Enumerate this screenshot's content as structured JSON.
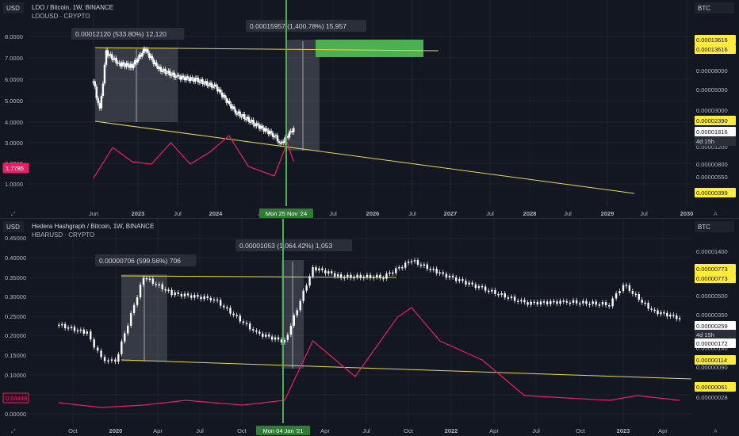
{
  "colors": {
    "background": "#131722",
    "grid": "#1e222d",
    "price": "#ffffff",
    "indicator": "#e91e63",
    "trendline": "#e6d84a",
    "highlight_line": "#4caf50",
    "target_box": "#4caf50",
    "range_box": "#787b86",
    "label_yellow": "#ffeb3b",
    "label_pink": "#e91e63"
  },
  "chart_data": [
    {
      "type": "line",
      "title": "LDO / Bitcoin, 1W, BINANCE",
      "subtitle": "LDOUSD · CRYPTO",
      "currency_left": "USD",
      "currency_right": "BTC",
      "x_ticks": [
        "Jun",
        "2023",
        "Jul",
        "2024",
        "Jul",
        "2026",
        "Jul",
        "2027",
        "Jul",
        "2028",
        "Jul",
        "2029",
        "Jul",
        "2030"
      ],
      "x_ticks_pre_highlight": [
        "Jun",
        "2023",
        "Jul",
        "2024",
        "Jul"
      ],
      "x_ticks_post_highlight": [
        "Jul",
        "2026",
        "Jul",
        "2027",
        "Jul",
        "2028",
        "Jul",
        "2029",
        "Jul",
        "2030"
      ],
      "highlight_label": "Mon 25 Nov '24",
      "left_axis_ticks": [
        "8.0000",
        "7.0000",
        "6.0000",
        "5.0000",
        "4.0000",
        "3.0000",
        "2.0000",
        "1.0000"
      ],
      "left_marker": "1.7785",
      "right_axis_ticks": [
        "0.00008000",
        "0.00005000",
        "0.00003000",
        "0.00001200",
        "0.00000800",
        "0.00000550"
      ],
      "right_labels": {
        "top_a": "0.00013616",
        "top_b": "0.00013616",
        "mid": "0.00002390",
        "current": "0.00001816",
        "countdown": "4d 15h",
        "bottom": "0.00000399"
      },
      "measure_boxes": [
        {
          "label": "0.00012120 (533.80%) 12,120"
        },
        {
          "label": "0.00015957 (1,400.78%) 15,957"
        }
      ],
      "price_series": [
        {
          "x": "2022-06",
          "y": 5.8e-05
        },
        {
          "x": "2022-07",
          "y": 2.8e-05
        },
        {
          "x": "2022-08",
          "y": 0.00012
        },
        {
          "x": "2022-10",
          "y": 9e-05
        },
        {
          "x": "2022-12",
          "y": 8.5e-05
        },
        {
          "x": "2023-02",
          "y": 0.00013
        },
        {
          "x": "2023-04",
          "y": 8e-05
        },
        {
          "x": "2023-07",
          "y": 6.5e-05
        },
        {
          "x": "2023-10",
          "y": 6e-05
        },
        {
          "x": "2024-01",
          "y": 5e-05
        },
        {
          "x": "2024-04",
          "y": 2.7e-05
        },
        {
          "x": "2024-07",
          "y": 2e-05
        },
        {
          "x": "2024-10",
          "y": 1.5e-05
        },
        {
          "x": "2024-11",
          "y": 1.2e-05
        },
        {
          "x": "2025-01",
          "y": 1.8e-05
        }
      ],
      "indicator_series": [
        {
          "x": "2022-06",
          "y": 1.1
        },
        {
          "x": "2022-09",
          "y": 2.4
        },
        {
          "x": "2022-12",
          "y": 1.8
        },
        {
          "x": "2023-03",
          "y": 1.7
        },
        {
          "x": "2023-06",
          "y": 2.6
        },
        {
          "x": "2023-09",
          "y": 1.7
        },
        {
          "x": "2023-12",
          "y": 2.2
        },
        {
          "x": "2024-03",
          "y": 2.9
        },
        {
          "x": "2024-06",
          "y": 1.6
        },
        {
          "x": "2024-10",
          "y": 1.2
        },
        {
          "x": "2024-12",
          "y": 2.6
        },
        {
          "x": "2025-01",
          "y": 1.8
        }
      ]
    },
    {
      "type": "line",
      "title": "Hedera Hashgraph / Bitcoin, 1W, BINANCE",
      "subtitle": "HBARUSD · CRYPTO",
      "currency_left": "USD",
      "currency_right": "BTC",
      "x_ticks": [
        "Oct",
        "2020",
        "Apr",
        "Jul",
        "Oct",
        "Apr",
        "Jul",
        "Oct",
        "2022",
        "Apr",
        "Jul",
        "Oct",
        "2023",
        "Apr"
      ],
      "x_ticks_pre_highlight": [
        "Oct",
        "2020",
        "Apr",
        "Jul",
        "Oct"
      ],
      "x_ticks_post_highlight": [
        "Apr",
        "Jul",
        "Oct",
        "2022",
        "Apr",
        "Jul",
        "Oct",
        "2023",
        "Apr"
      ],
      "highlight_label": "Mon 04 Jan '21",
      "left_axis_ticks": [
        "0.45000",
        "0.40000",
        "0.35000",
        "0.30000",
        "0.25000",
        "0.20000",
        "0.15000",
        "0.10000",
        "0.05000",
        "0.00000"
      ],
      "left_marker": "0.04449",
      "right_axis_ticks": [
        "0.00001400",
        "0.00001000",
        "0.00000500",
        "0.00000350",
        "0.00000140",
        "0.00000090",
        "0.00000040",
        "0.00000028"
      ],
      "right_labels": {
        "top_a": "0.00000773",
        "top_b": "0.00000773",
        "current": "0.00000259",
        "countdown": "4d 15h",
        "mid": "0.00000172",
        "lower": "0.00000114",
        "bottom": "0.00000061"
      },
      "measure_boxes": [
        {
          "label": "0.00000706 (599.56%) 706"
        },
        {
          "label": "0.00001053 (1,064.42%) 1,053"
        }
      ],
      "price_series": [
        {
          "x": "2019-09",
          "y": 1.5e-06
        },
        {
          "x": "2019-11",
          "y": 1.2e-06
        },
        {
          "x": "2019-12",
          "y": 6e-07
        },
        {
          "x": "2020-01",
          "y": 5.5e-07
        },
        {
          "x": "2020-03",
          "y": 5.5e-06
        },
        {
          "x": "2020-05",
          "y": 3.5e-06
        },
        {
          "x": "2020-08",
          "y": 3e-06
        },
        {
          "x": "2020-11",
          "y": 1.2e-06
        },
        {
          "x": "2021-01",
          "y": 9.5e-07
        },
        {
          "x": "2021-03",
          "y": 7e-06
        },
        {
          "x": "2021-05",
          "y": 5.5e-06
        },
        {
          "x": "2021-08",
          "y": 5.5e-06
        },
        {
          "x": "2021-10",
          "y": 8.5e-06
        },
        {
          "x": "2021-12",
          "y": 6e-06
        },
        {
          "x": "2022-03",
          "y": 4e-06
        },
        {
          "x": "2022-06",
          "y": 2.7e-06
        },
        {
          "x": "2022-09",
          "y": 2.8e-06
        },
        {
          "x": "2022-12",
          "y": 2.6e-06
        },
        {
          "x": "2023-01",
          "y": 4.5e-06
        },
        {
          "x": "2023-03",
          "y": 2.2e-06
        },
        {
          "x": "2023-05",
          "y": 1.8e-06
        }
      ],
      "indicator_series": [
        {
          "x": "2019-09",
          "y": 0.04
        },
        {
          "x": "2019-12",
          "y": 0.02
        },
        {
          "x": "2020-03",
          "y": 0.03
        },
        {
          "x": "2020-06",
          "y": 0.05
        },
        {
          "x": "2020-10",
          "y": 0.03
        },
        {
          "x": "2021-01",
          "y": 0.05
        },
        {
          "x": "2021-03",
          "y": 0.3
        },
        {
          "x": "2021-06",
          "y": 0.15
        },
        {
          "x": "2021-09",
          "y": 0.4
        },
        {
          "x": "2021-10",
          "y": 0.44
        },
        {
          "x": "2021-12",
          "y": 0.3
        },
        {
          "x": "2022-03",
          "y": 0.22
        },
        {
          "x": "2022-06",
          "y": 0.07
        },
        {
          "x": "2022-09",
          "y": 0.06
        },
        {
          "x": "2022-12",
          "y": 0.05
        },
        {
          "x": "2023-02",
          "y": 0.07
        },
        {
          "x": "2023-05",
          "y": 0.05
        }
      ]
    }
  ]
}
